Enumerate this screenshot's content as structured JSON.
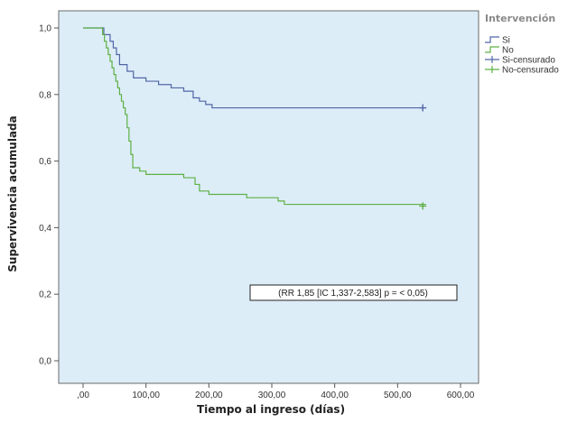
{
  "chart_data": {
    "type": "line",
    "title": "",
    "xlabel": "Tiempo al ingreso (días)",
    "ylabel": "Supervivencia acumulada",
    "xlim": [
      0,
      600
    ],
    "ylim": [
      0,
      1
    ],
    "x_ticks": [
      0,
      100,
      200,
      300,
      400,
      500,
      600
    ],
    "x_tick_labels": [
      ",00",
      "100,00",
      "200,00",
      "300,00",
      "400,00",
      "500,00",
      "600,00"
    ],
    "y_ticks": [
      0,
      0.2,
      0.4,
      0.6,
      0.8,
      1.0
    ],
    "y_tick_labels": [
      "0,0",
      "0,2",
      "0,4",
      "0,6",
      "0,8",
      "1,0"
    ],
    "grid": false,
    "background": "#dcedf8",
    "legend": {
      "title": "Intervención",
      "position": "top-right",
      "entries": [
        {
          "label": "Si",
          "color": "#5266a6",
          "symbol": "line"
        },
        {
          "label": "No",
          "color": "#5fb043",
          "symbol": "line"
        },
        {
          "label": "Si-censurado",
          "color": "#5266a6",
          "symbol": "cross"
        },
        {
          "label": "No-censurado",
          "color": "#5fb043",
          "symbol": "cross"
        }
      ]
    },
    "annotation": "(RR  1,85 [IC 1,337-2,583]  p = < 0,05)",
    "series": [
      {
        "name": "Si",
        "color": "#5266a6",
        "step": true,
        "x": [
          0,
          28,
          33,
          43,
          48,
          53,
          58,
          70,
          80,
          100,
          120,
          140,
          160,
          175,
          185,
          195,
          205,
          545
        ],
        "y": [
          1.0,
          1.0,
          0.98,
          0.96,
          0.94,
          0.92,
          0.89,
          0.87,
          0.85,
          0.84,
          0.83,
          0.82,
          0.81,
          0.79,
          0.78,
          0.77,
          0.76,
          0.76
        ],
        "censored": [
          {
            "x": 540,
            "y": 0.76
          }
        ]
      },
      {
        "name": "No",
        "color": "#5fb043",
        "step": true,
        "x": [
          0,
          28,
          31,
          34,
          37,
          40,
          43,
          46,
          49,
          52,
          55,
          58,
          61,
          64,
          67,
          70,
          73,
          76,
          79,
          83,
          90,
          100,
          115,
          160,
          178,
          185,
          200,
          260,
          310,
          320,
          545
        ],
        "y": [
          1.0,
          1.0,
          0.98,
          0.96,
          0.94,
          0.92,
          0.9,
          0.88,
          0.86,
          0.84,
          0.82,
          0.8,
          0.78,
          0.76,
          0.74,
          0.7,
          0.66,
          0.62,
          0.58,
          0.58,
          0.57,
          0.56,
          0.56,
          0.55,
          0.53,
          0.51,
          0.5,
          0.49,
          0.48,
          0.47,
          0.47
        ],
        "censored": [
          {
            "x": 540,
            "y": 0.465
          }
        ]
      }
    ]
  }
}
